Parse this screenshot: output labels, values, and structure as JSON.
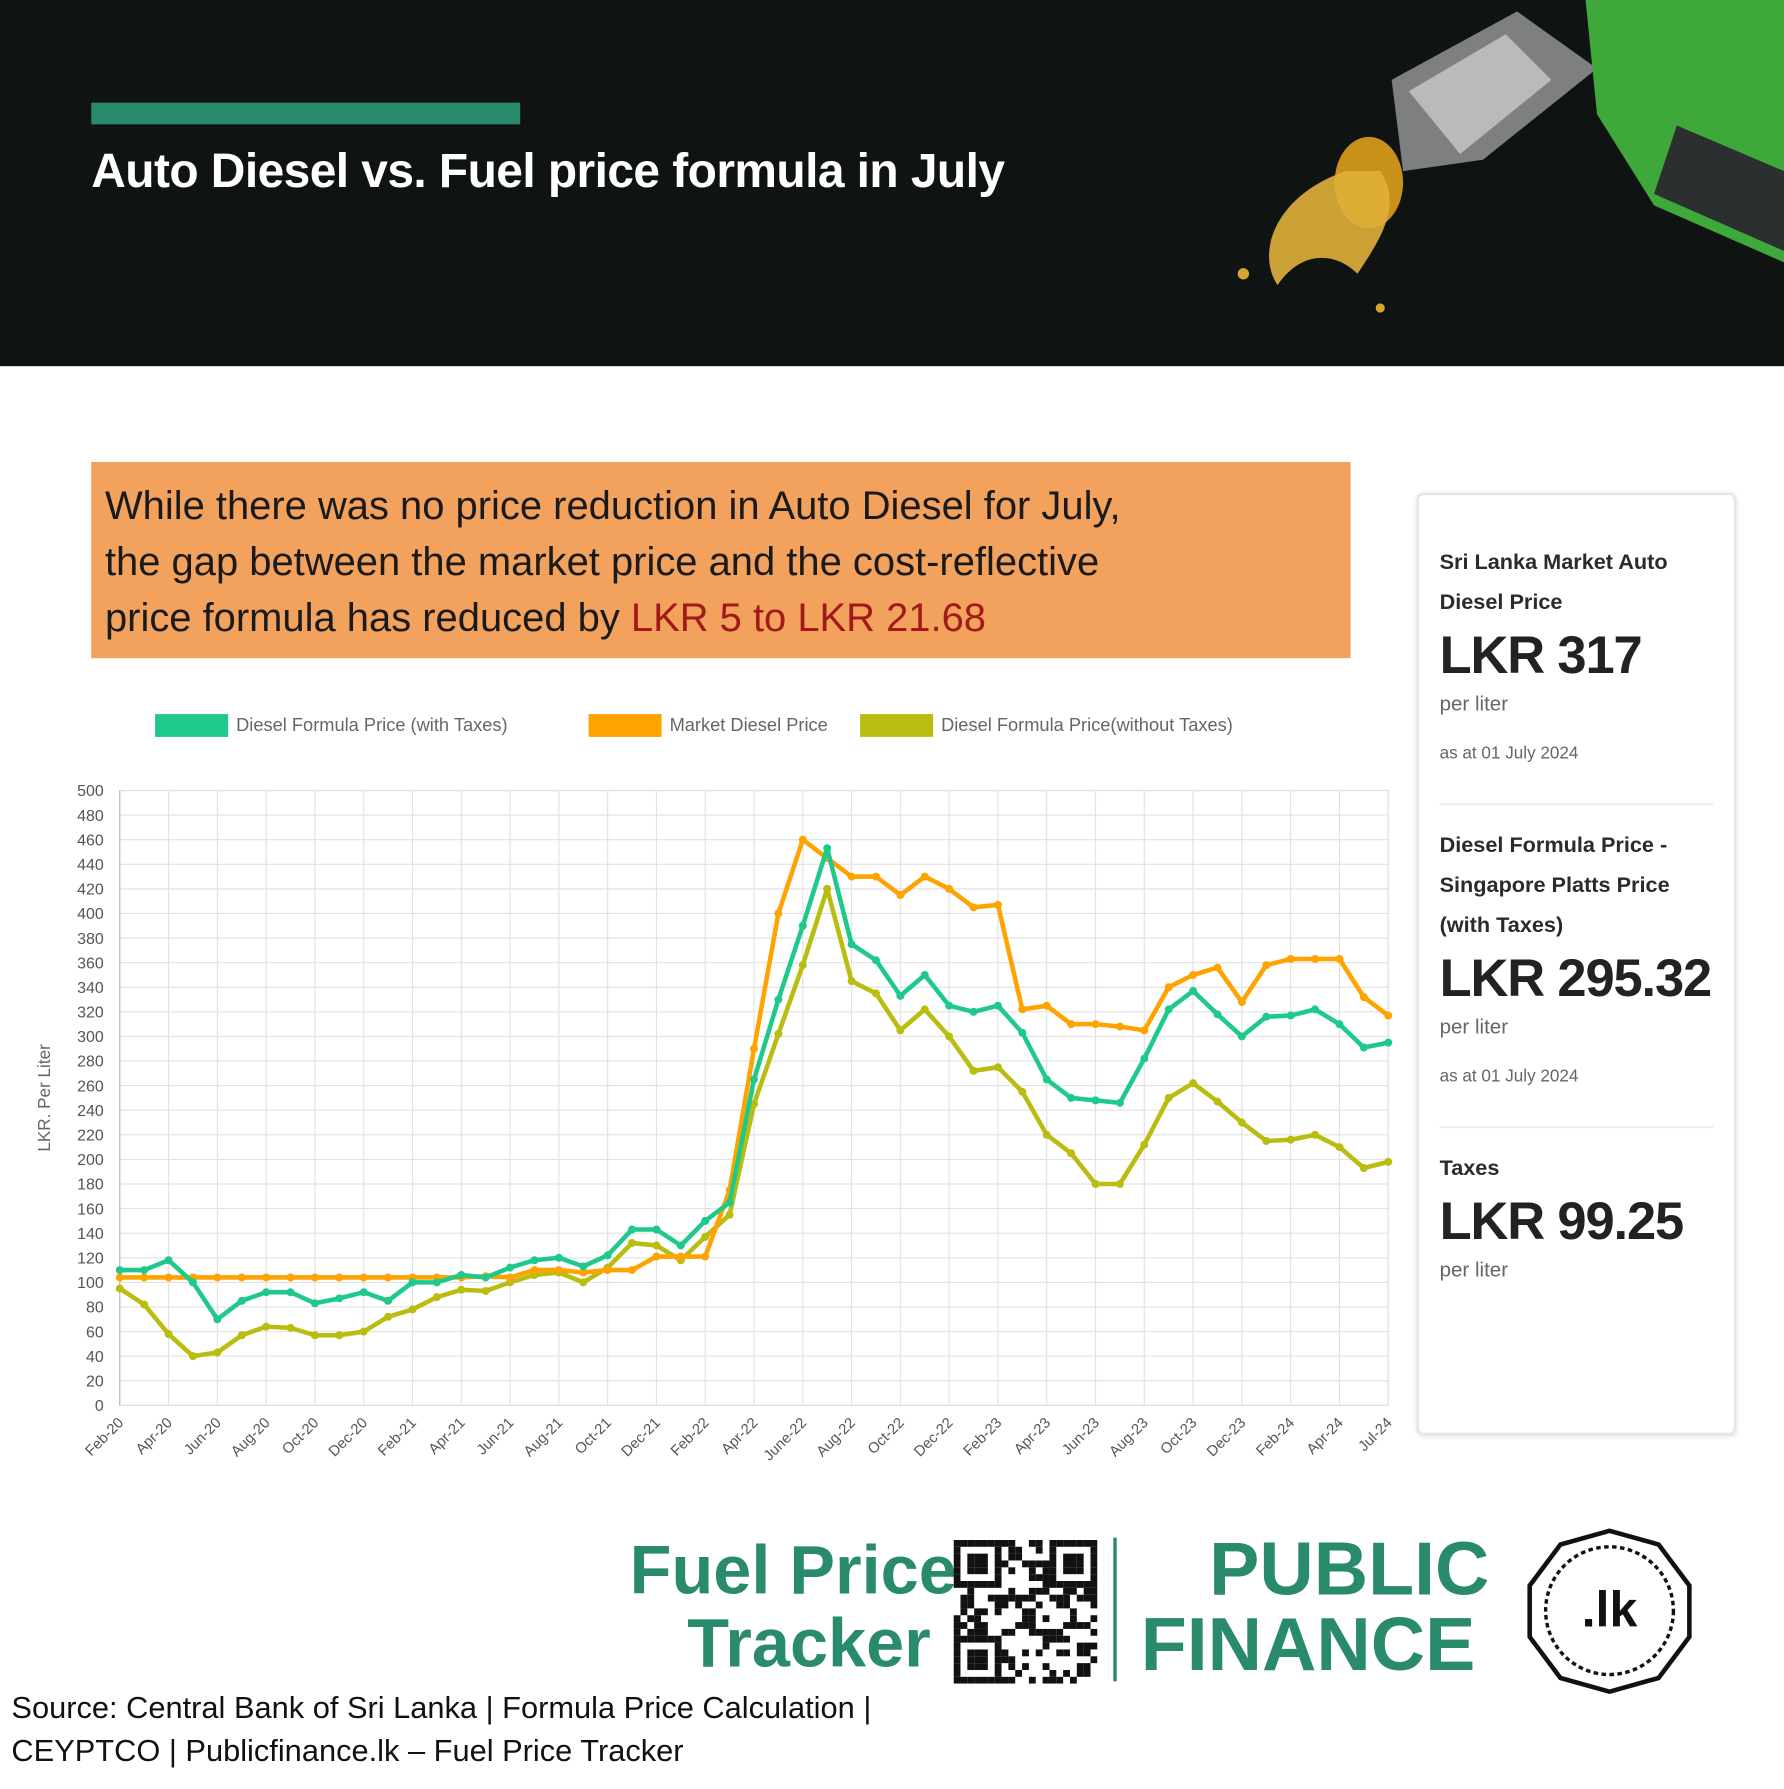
{
  "header": {
    "title": "Auto Diesel vs. Fuel price formula in July"
  },
  "callout": {
    "lines": [
      "While there was no price reduction in Auto Diesel for July,",
      "the gap between the market price and the cost-reflective",
      "price formula has reduced by "
    ],
    "highlight": "LKR 5 to LKR 21.68"
  },
  "card": [
    {
      "label": "Sri Lanka Market Auto Diesel Price",
      "value": "LKR 317",
      "unit": "per liter",
      "note": "as at 01 July 2024"
    },
    {
      "label": "Diesel Formula Price - Singapore Platts Price (with Taxes)",
      "value": "LKR 295.32",
      "unit": "per liter",
      "note": "as at 01 July 2024"
    },
    {
      "label": "Taxes",
      "value": "LKR 99.25",
      "unit": "per liter"
    }
  ],
  "footer": {
    "tracker": [
      "Fuel Price",
      "Tracker"
    ],
    "brand": [
      "PUBLIC",
      "FINANCE"
    ],
    "logo": ".lk",
    "source": [
      "Source: Central Bank of Sri Lanka | Formula Price Calculation |",
      "CEYPTCO | Publicfinance.lk – Fuel Price Tracker"
    ]
  },
  "chart_data": {
    "type": "line",
    "y_label": "LKR. Per Liter",
    "grid": true,
    "categories": [
      "Feb-20",
      null,
      "Apr-20",
      null,
      "Jun-20",
      null,
      "Aug-20",
      null,
      "Oct-20",
      null,
      "Dec-20",
      null,
      "Feb-21",
      null,
      "Apr-21",
      null,
      "Jun-21",
      null,
      "Aug-21",
      null,
      "Oct-21",
      null,
      "Dec-21",
      null,
      "Feb-22",
      null,
      "Apr-22",
      null,
      "June-22",
      null,
      "Aug-22",
      null,
      "Oct-22",
      null,
      "Dec-22",
      null,
      "Feb-23",
      null,
      "Apr-23",
      null,
      "Jun-23",
      null,
      "Aug-23",
      null,
      "Oct-23",
      null,
      "Dec-23",
      null,
      "Feb-24",
      null,
      "Apr-24",
      null,
      "Jul-24"
    ],
    "ylim": [
      0,
      500
    ],
    "yticks": [
      0,
      20,
      40,
      60,
      80,
      100,
      120,
      140,
      160,
      180,
      200,
      220,
      240,
      260,
      280,
      300,
      320,
      340,
      360,
      380,
      400,
      420,
      440,
      460,
      480,
      500
    ],
    "series": [
      {
        "name": "Diesel Formula Price (with Taxes)",
        "color": "#1fc98a",
        "values": [
          110,
          110,
          118,
          100,
          70,
          85,
          92,
          92,
          83,
          87,
          92,
          85,
          100,
          100,
          106,
          104,
          112,
          118,
          120,
          113,
          122,
          143,
          143,
          130,
          150,
          165,
          265,
          330,
          390,
          453,
          375,
          362,
          333,
          350,
          325,
          320,
          325,
          303,
          265,
          250,
          248,
          246,
          282,
          322,
          337,
          318,
          300,
          316,
          317,
          322,
          310,
          291,
          295
        ]
      },
      {
        "name": "Market Diesel Price",
        "color": "#ffa300",
        "values": [
          104,
          104,
          104,
          104,
          104,
          104,
          104,
          104,
          104,
          104,
          104,
          104,
          104,
          104,
          104,
          105,
          104,
          110,
          110,
          108,
          110,
          110,
          121,
          121,
          121,
          175,
          290,
          400,
          460,
          445,
          430,
          430,
          415,
          430,
          420,
          405,
          407,
          322,
          325,
          310,
          310,
          308,
          305,
          340,
          350,
          356,
          328,
          358,
          363,
          363,
          363,
          332,
          317
        ]
      },
      {
        "name": "Diesel Formula Price(without Taxes)",
        "color": "#b8bd0f",
        "values": [
          95,
          82,
          58,
          40,
          43,
          57,
          64,
          63,
          57,
          57,
          60,
          72,
          78,
          88,
          94,
          93,
          100,
          106,
          108,
          100,
          112,
          132,
          130,
          118,
          137,
          155,
          245,
          302,
          358,
          420,
          345,
          335,
          305,
          322,
          300,
          272,
          275,
          255,
          220,
          205,
          180,
          180,
          212,
          250,
          262,
          247,
          230,
          215,
          216,
          220,
          210,
          193,
          198
        ]
      }
    ]
  }
}
